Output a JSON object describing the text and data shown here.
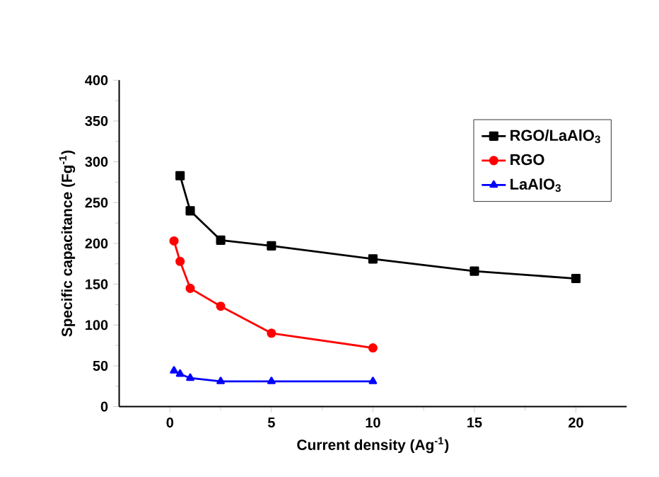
{
  "chart_data": {
    "type": "line",
    "xlabel": "Current density (Ag$^{-1}$)",
    "ylabel": "Specific capacitance (Fg$^{-1}$)",
    "xlim": [
      -2.5,
      22.5
    ],
    "xticks": [
      0,
      5,
      10,
      15,
      20
    ],
    "ylim": [
      0,
      400
    ],
    "yticks": [
      0,
      50,
      100,
      150,
      200,
      250,
      300,
      350,
      400
    ],
    "grid": false,
    "legend": "top right",
    "series": [
      {
        "name": "RGO/LaAlO$_{3}$",
        "color": "#000000",
        "marker": "square",
        "x": [
          0.5,
          1,
          2.5,
          5,
          10,
          15,
          20
        ],
        "values": [
          283,
          240,
          204,
          197,
          181,
          166,
          157
        ]
      },
      {
        "name": "RGO",
        "color": "#ff0000",
        "marker": "circle",
        "x": [
          0.2,
          0.5,
          1,
          2.5,
          5,
          10
        ],
        "values": [
          203,
          178,
          145,
          123,
          90,
          72
        ]
      },
      {
        "name": "LaAlO$_{3}$",
        "color": "#0000ff",
        "marker": "triangle",
        "x": [
          0.2,
          0.5,
          1,
          2.5,
          5,
          10
        ],
        "values": [
          44,
          40,
          35,
          31,
          31,
          31
        ]
      }
    ]
  }
}
